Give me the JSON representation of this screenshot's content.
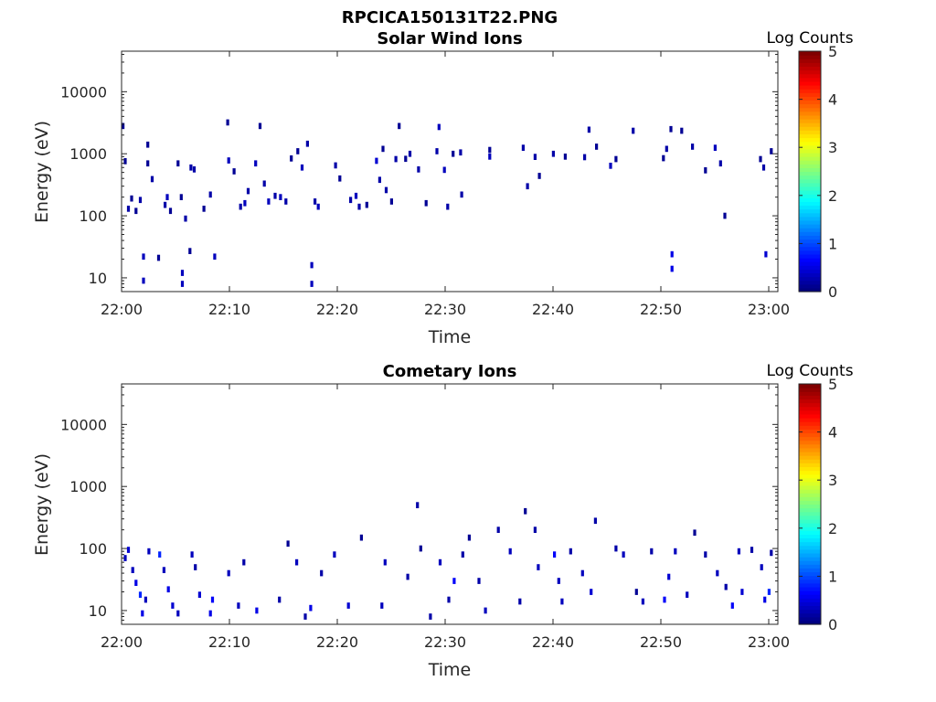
{
  "figure_title": "RPCICA150131T22.PNG",
  "colorbar": {
    "label": "Log Counts",
    "ticks": [
      "0",
      "1",
      "2",
      "3",
      "4",
      "5"
    ],
    "range": [
      0,
      5
    ],
    "colormap": "jet"
  },
  "chart_data": [
    {
      "type": "heatmap",
      "title": "Solar Wind Ions",
      "xlabel": "Time",
      "ylabel": "Energy (eV)",
      "x_ticks": [
        "22:00",
        "22:10",
        "22:20",
        "22:30",
        "22:40",
        "22:50",
        "23:00"
      ],
      "x_range_minutes": [
        0,
        61
      ],
      "y_scale": "log",
      "y_ticks": [
        "10",
        "100",
        "1000",
        "10000"
      ],
      "ylim": [
        6,
        45000
      ],
      "value_range": [
        0,
        5
      ],
      "cells": [
        [
          0,
          2800,
          0.1
        ],
        [
          0.2,
          760,
          0.1
        ],
        [
          0.5,
          130,
          0.2
        ],
        [
          0.8,
          190,
          0.1
        ],
        [
          1.2,
          120,
          0.1
        ],
        [
          1.6,
          180,
          0.2
        ],
        [
          1.9,
          22,
          0.3
        ],
        [
          1.9,
          9,
          0.3
        ],
        [
          2.3,
          1400,
          0.1
        ],
        [
          2.3,
          700,
          0.1
        ],
        [
          2.7,
          390,
          0.2
        ],
        [
          3.3,
          21,
          0.1
        ],
        [
          3.9,
          150,
          0.2
        ],
        [
          4.1,
          200,
          0.3
        ],
        [
          4.4,
          120,
          0.1
        ],
        [
          5.1,
          700,
          0.1
        ],
        [
          5.4,
          200,
          0.1
        ],
        [
          5.5,
          12,
          0.3
        ],
        [
          5.5,
          8,
          0.3
        ],
        [
          5.8,
          90,
          0.2
        ],
        [
          6.2,
          27,
          0.1
        ],
        [
          6.3,
          600,
          0.2
        ],
        [
          6.6,
          560,
          0.2
        ],
        [
          7.5,
          130,
          0.1
        ],
        [
          8.1,
          220,
          0.2
        ],
        [
          8.5,
          22,
          0.3
        ],
        [
          9.7,
          3200,
          0.1
        ],
        [
          9.8,
          780,
          0.3
        ],
        [
          10.3,
          520,
          0.1
        ],
        [
          10.9,
          140,
          0.2
        ],
        [
          11.3,
          160,
          0.3
        ],
        [
          11.6,
          250,
          0.2
        ],
        [
          12.3,
          700,
          0.3
        ],
        [
          12.7,
          2800,
          0.1
        ],
        [
          13.1,
          330,
          0.2
        ],
        [
          13.5,
          170,
          0.3
        ],
        [
          14.1,
          210,
          0.2
        ],
        [
          14.6,
          200,
          0.3
        ],
        [
          15.1,
          170,
          0.2
        ],
        [
          15.6,
          840,
          0.1
        ],
        [
          16.2,
          1100,
          0.1
        ],
        [
          16.6,
          600,
          0.3
        ],
        [
          17.1,
          1450,
          0.2
        ],
        [
          17.5,
          16,
          0.3
        ],
        [
          17.5,
          8,
          0.3
        ],
        [
          17.8,
          170,
          0.2
        ],
        [
          18.1,
          140,
          0.3
        ],
        [
          19.7,
          650,
          0.2
        ],
        [
          20.1,
          400,
          0.1
        ],
        [
          21.1,
          180,
          0.2
        ],
        [
          21.6,
          210,
          0.3
        ],
        [
          21.9,
          140,
          0.2
        ],
        [
          22.6,
          150,
          0.1
        ],
        [
          23.5,
          770,
          0.4
        ],
        [
          23.8,
          380,
          0.2
        ],
        [
          24.1,
          1200,
          0.1
        ],
        [
          24.4,
          260,
          0.2
        ],
        [
          24.9,
          170,
          0.1
        ],
        [
          25.3,
          820,
          0.2
        ],
        [
          25.6,
          2800,
          0.1
        ],
        [
          26.2,
          830,
          0.1
        ],
        [
          26.6,
          1000,
          0.2
        ],
        [
          27.4,
          560,
          0.2
        ],
        [
          28.1,
          160,
          0.1
        ],
        [
          29.1,
          1100,
          0.2
        ],
        [
          29.3,
          2700,
          0.3
        ],
        [
          29.8,
          550,
          0.3
        ],
        [
          30.1,
          140,
          0.2
        ],
        [
          30.6,
          1000,
          0.1
        ],
        [
          31.3,
          1050,
          0.2
        ],
        [
          31.4,
          220,
          0.2
        ],
        [
          34.0,
          1150,
          0.1
        ],
        [
          34.0,
          900,
          0.3
        ],
        [
          37.1,
          1250,
          0.2
        ],
        [
          37.5,
          300,
          0.2
        ],
        [
          38.2,
          890,
          0.2
        ],
        [
          38.6,
          440,
          0.1
        ],
        [
          39.9,
          1000,
          0.2
        ],
        [
          41.0,
          900,
          0.1
        ],
        [
          42.8,
          880,
          0.2
        ],
        [
          43.2,
          2450,
          0.2
        ],
        [
          43.9,
          1300,
          0.1
        ],
        [
          45.2,
          640,
          0.3
        ],
        [
          45.7,
          820,
          0.1
        ],
        [
          47.3,
          2350,
          0.2
        ],
        [
          50.1,
          850,
          0.1
        ],
        [
          50.4,
          1200,
          0.2
        ],
        [
          50.8,
          2500,
          0.1
        ],
        [
          50.9,
          24,
          0.5
        ],
        [
          50.9,
          14,
          0.5
        ],
        [
          51.8,
          2350,
          0.1
        ],
        [
          52.8,
          1300,
          0.2
        ],
        [
          54.0,
          540,
          0.1
        ],
        [
          54.9,
          1250,
          0.3
        ],
        [
          55.4,
          700,
          0.2
        ],
        [
          55.8,
          100,
          0.1
        ],
        [
          59.1,
          820,
          0.1
        ],
        [
          59.4,
          600,
          0.2
        ],
        [
          59.6,
          24,
          0.4
        ],
        [
          60.1,
          1100,
          0.1
        ]
      ]
    },
    {
      "type": "heatmap",
      "title": "Cometary Ions",
      "xlabel": "Time",
      "ylabel": "Energy (eV)",
      "x_ticks": [
        "22:00",
        "22:10",
        "22:20",
        "22:30",
        "22:40",
        "22:50",
        "23:00"
      ],
      "x_range_minutes": [
        0,
        61
      ],
      "y_scale": "log",
      "y_ticks": [
        "10",
        "100",
        "1000",
        "10000"
      ],
      "ylim": [
        6,
        45000
      ],
      "value_range": [
        0,
        5
      ],
      "cells": [
        [
          0.2,
          70,
          0.3
        ],
        [
          0.5,
          95,
          0.4
        ],
        [
          0.9,
          45,
          0.3
        ],
        [
          1.2,
          28,
          0.5
        ],
        [
          1.6,
          18,
          0.8
        ],
        [
          1.8,
          9,
          0.5
        ],
        [
          2.1,
          15,
          0.3
        ],
        [
          2.4,
          90,
          0.3
        ],
        [
          3.4,
          80,
          0.8
        ],
        [
          3.8,
          45,
          0.3
        ],
        [
          4.2,
          22,
          0.5
        ],
        [
          4.6,
          12,
          0.4
        ],
        [
          5.1,
          9,
          0.3
        ],
        [
          6.4,
          80,
          0.3
        ],
        [
          6.7,
          50,
          0.2
        ],
        [
          7.1,
          18,
          0.4
        ],
        [
          8.1,
          9,
          0.5
        ],
        [
          8.3,
          15,
          0.6
        ],
        [
          9.8,
          40,
          0.3
        ],
        [
          10.7,
          12,
          0.3
        ],
        [
          11.2,
          60,
          0.2
        ],
        [
          12.4,
          10,
          0.5
        ],
        [
          14.5,
          15,
          0.2
        ],
        [
          15.3,
          120,
          0.1
        ],
        [
          16.1,
          60,
          0.3
        ],
        [
          16.9,
          8,
          0.2
        ],
        [
          17.4,
          11,
          0.5
        ],
        [
          18.4,
          40,
          0.2
        ],
        [
          19.6,
          80,
          0.3
        ],
        [
          20.9,
          12,
          0.4
        ],
        [
          22.1,
          150,
          0.1
        ],
        [
          24.0,
          12,
          0.3
        ],
        [
          24.3,
          60,
          0.3
        ],
        [
          26.4,
          35,
          0.2
        ],
        [
          27.3,
          500,
          0.2
        ],
        [
          27.6,
          100,
          0.1
        ],
        [
          28.5,
          8,
          0.2
        ],
        [
          29.4,
          60,
          0.3
        ],
        [
          30.2,
          15,
          0.2
        ],
        [
          30.7,
          30,
          0.6
        ],
        [
          31.5,
          80,
          0.2
        ],
        [
          32.1,
          150,
          0.1
        ],
        [
          33.0,
          30,
          0.2
        ],
        [
          33.6,
          10,
          0.3
        ],
        [
          34.8,
          200,
          0.2
        ],
        [
          35.9,
          90,
          0.3
        ],
        [
          36.8,
          14,
          0.2
        ],
        [
          37.3,
          400,
          0.1
        ],
        [
          38.2,
          200,
          0.2
        ],
        [
          38.5,
          50,
          0.3
        ],
        [
          40.0,
          80,
          0.6
        ],
        [
          40.4,
          30,
          0.3
        ],
        [
          40.7,
          14,
          0.3
        ],
        [
          41.5,
          90,
          0.2
        ],
        [
          42.6,
          40,
          0.3
        ],
        [
          43.4,
          20,
          0.4
        ],
        [
          43.8,
          280,
          0.2
        ],
        [
          45.7,
          100,
          0.2
        ],
        [
          46.4,
          80,
          0.3
        ],
        [
          47.6,
          20,
          0.1
        ],
        [
          48.2,
          14,
          0.3
        ],
        [
          49.0,
          90,
          0.2
        ],
        [
          50.2,
          15,
          0.6
        ],
        [
          50.6,
          35,
          0.4
        ],
        [
          51.2,
          90,
          0.3
        ],
        [
          52.3,
          18,
          0.3
        ],
        [
          53.0,
          180,
          0.1
        ],
        [
          54.0,
          80,
          0.2
        ],
        [
          55.1,
          40,
          0.3
        ],
        [
          55.9,
          24,
          0.2
        ],
        [
          56.5,
          12,
          0.6
        ],
        [
          57.1,
          90,
          0.3
        ],
        [
          57.4,
          20,
          0.4
        ],
        [
          58.3,
          95,
          0.2
        ],
        [
          59.2,
          50,
          0.3
        ],
        [
          59.5,
          15,
          0.5
        ],
        [
          59.9,
          20,
          0.8
        ],
        [
          60.1,
          85,
          0.2
        ]
      ]
    }
  ]
}
